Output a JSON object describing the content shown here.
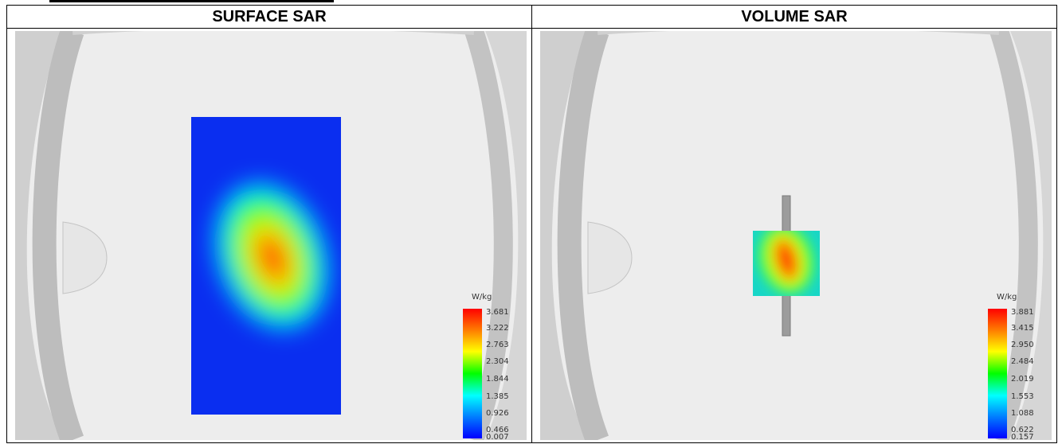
{
  "headers": {
    "left": "SURFACE SAR",
    "right": "VOLUME SAR"
  },
  "panels": [
    {
      "unit": "W/kg",
      "scale_ticks": [
        "3.681",
        "3.222",
        "2.763",
        "2.304",
        "1.844",
        "1.385",
        "0.926",
        "0.466",
        "0.007"
      ]
    },
    {
      "unit": "W/kg",
      "scale_ticks": [
        "3.881",
        "3.415",
        "2.950",
        "2.484",
        "2.019",
        "1.553",
        "1.088",
        "0.622",
        "0.157"
      ]
    }
  ],
  "colors": {
    "colormap": [
      "#ff0000",
      "#ff8000",
      "#ffff00",
      "#00ff00",
      "#00ffff",
      "#0080ff",
      "#0000ff"
    ],
    "background": "#ededed",
    "phantom_ring": "#c8c8c8"
  }
}
